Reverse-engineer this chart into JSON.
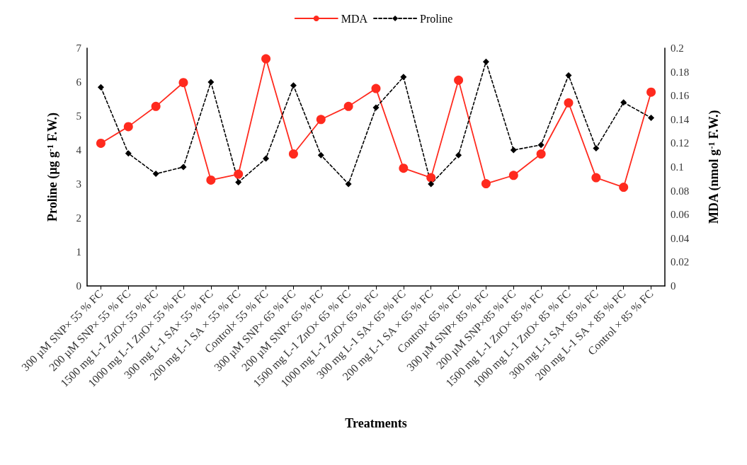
{
  "chart_data": {
    "type": "line",
    "xlabel": "Treatments",
    "ylabel": "Proline (µg g$^{-1}$ F.W.)",
    "y2label": "MDA (nmol g$^{-1}$ F.W.)",
    "categories": [
      "300 µM SNP× 55 % FC",
      "200 µM SNP× 55 % FC",
      "1500 mg L-1 ZnO× 55 % FC",
      "1000 mg L-1 ZnO× 55 % FC",
      "300 mg L-1 SA× 55 % FC",
      "200 mg L-1 SA × 55 % FC",
      "Control× 55 % FC",
      "300 µM SNP× 65 % FC",
      "200 µM SNP× 65 % FC",
      "1500 mg L-1 ZnO× 65 % FC",
      "1000 mg L-1 ZnO× 65 % FC",
      "300 mg L-1 SA× 65 % FC",
      "200 mg L-1 SA × 65 % FC",
      "Control× 65 % FC",
      "300 µM SNP× 85 % FC",
      "200 µM SNP×85 % FC",
      "1500 mg L-1 ZnO× 85 % FC",
      "1000 mg L-1 ZnO× 85 % FC",
      "300 mg L-1 SA× 85 % FC",
      "200 mg L-1 SA × 85 % FC",
      "Control × 85 % FC"
    ],
    "series": [
      {
        "name": "MDA",
        "color": "#ff2a1e",
        "axis": "y2",
        "marker": "circle",
        "line_style": "solid",
        "values": [
          0.12,
          0.134,
          0.151,
          0.171,
          0.089,
          0.094,
          0.191,
          0.111,
          0.14,
          0.151,
          0.166,
          0.099,
          0.091,
          0.173,
          0.086,
          0.093,
          0.111,
          0.154,
          0.091,
          0.083,
          0.163
        ]
      },
      {
        "name": "Proline",
        "color": "#000000",
        "marker": "diamond",
        "line_style": "dashed",
        "values": [
          5.85,
          3.9,
          3.3,
          3.5,
          6.0,
          3.05,
          3.75,
          5.9,
          3.85,
          3.0,
          5.25,
          6.15,
          3.0,
          3.85,
          6.6,
          4.0,
          4.15,
          6.2,
          4.05,
          5.4,
          4.95
        ]
      }
    ],
    "ylim": [
      0,
      7
    ],
    "yticks": [
      0,
      1,
      2,
      3,
      4,
      5,
      6,
      7
    ],
    "y2lim": [
      0,
      0.2
    ],
    "y2ticks": [
      0,
      0.02,
      0.04,
      0.06,
      0.08,
      0.1,
      0.12,
      0.14,
      0.16,
      0.18,
      0.2
    ],
    "grid": false,
    "legend": "top"
  }
}
